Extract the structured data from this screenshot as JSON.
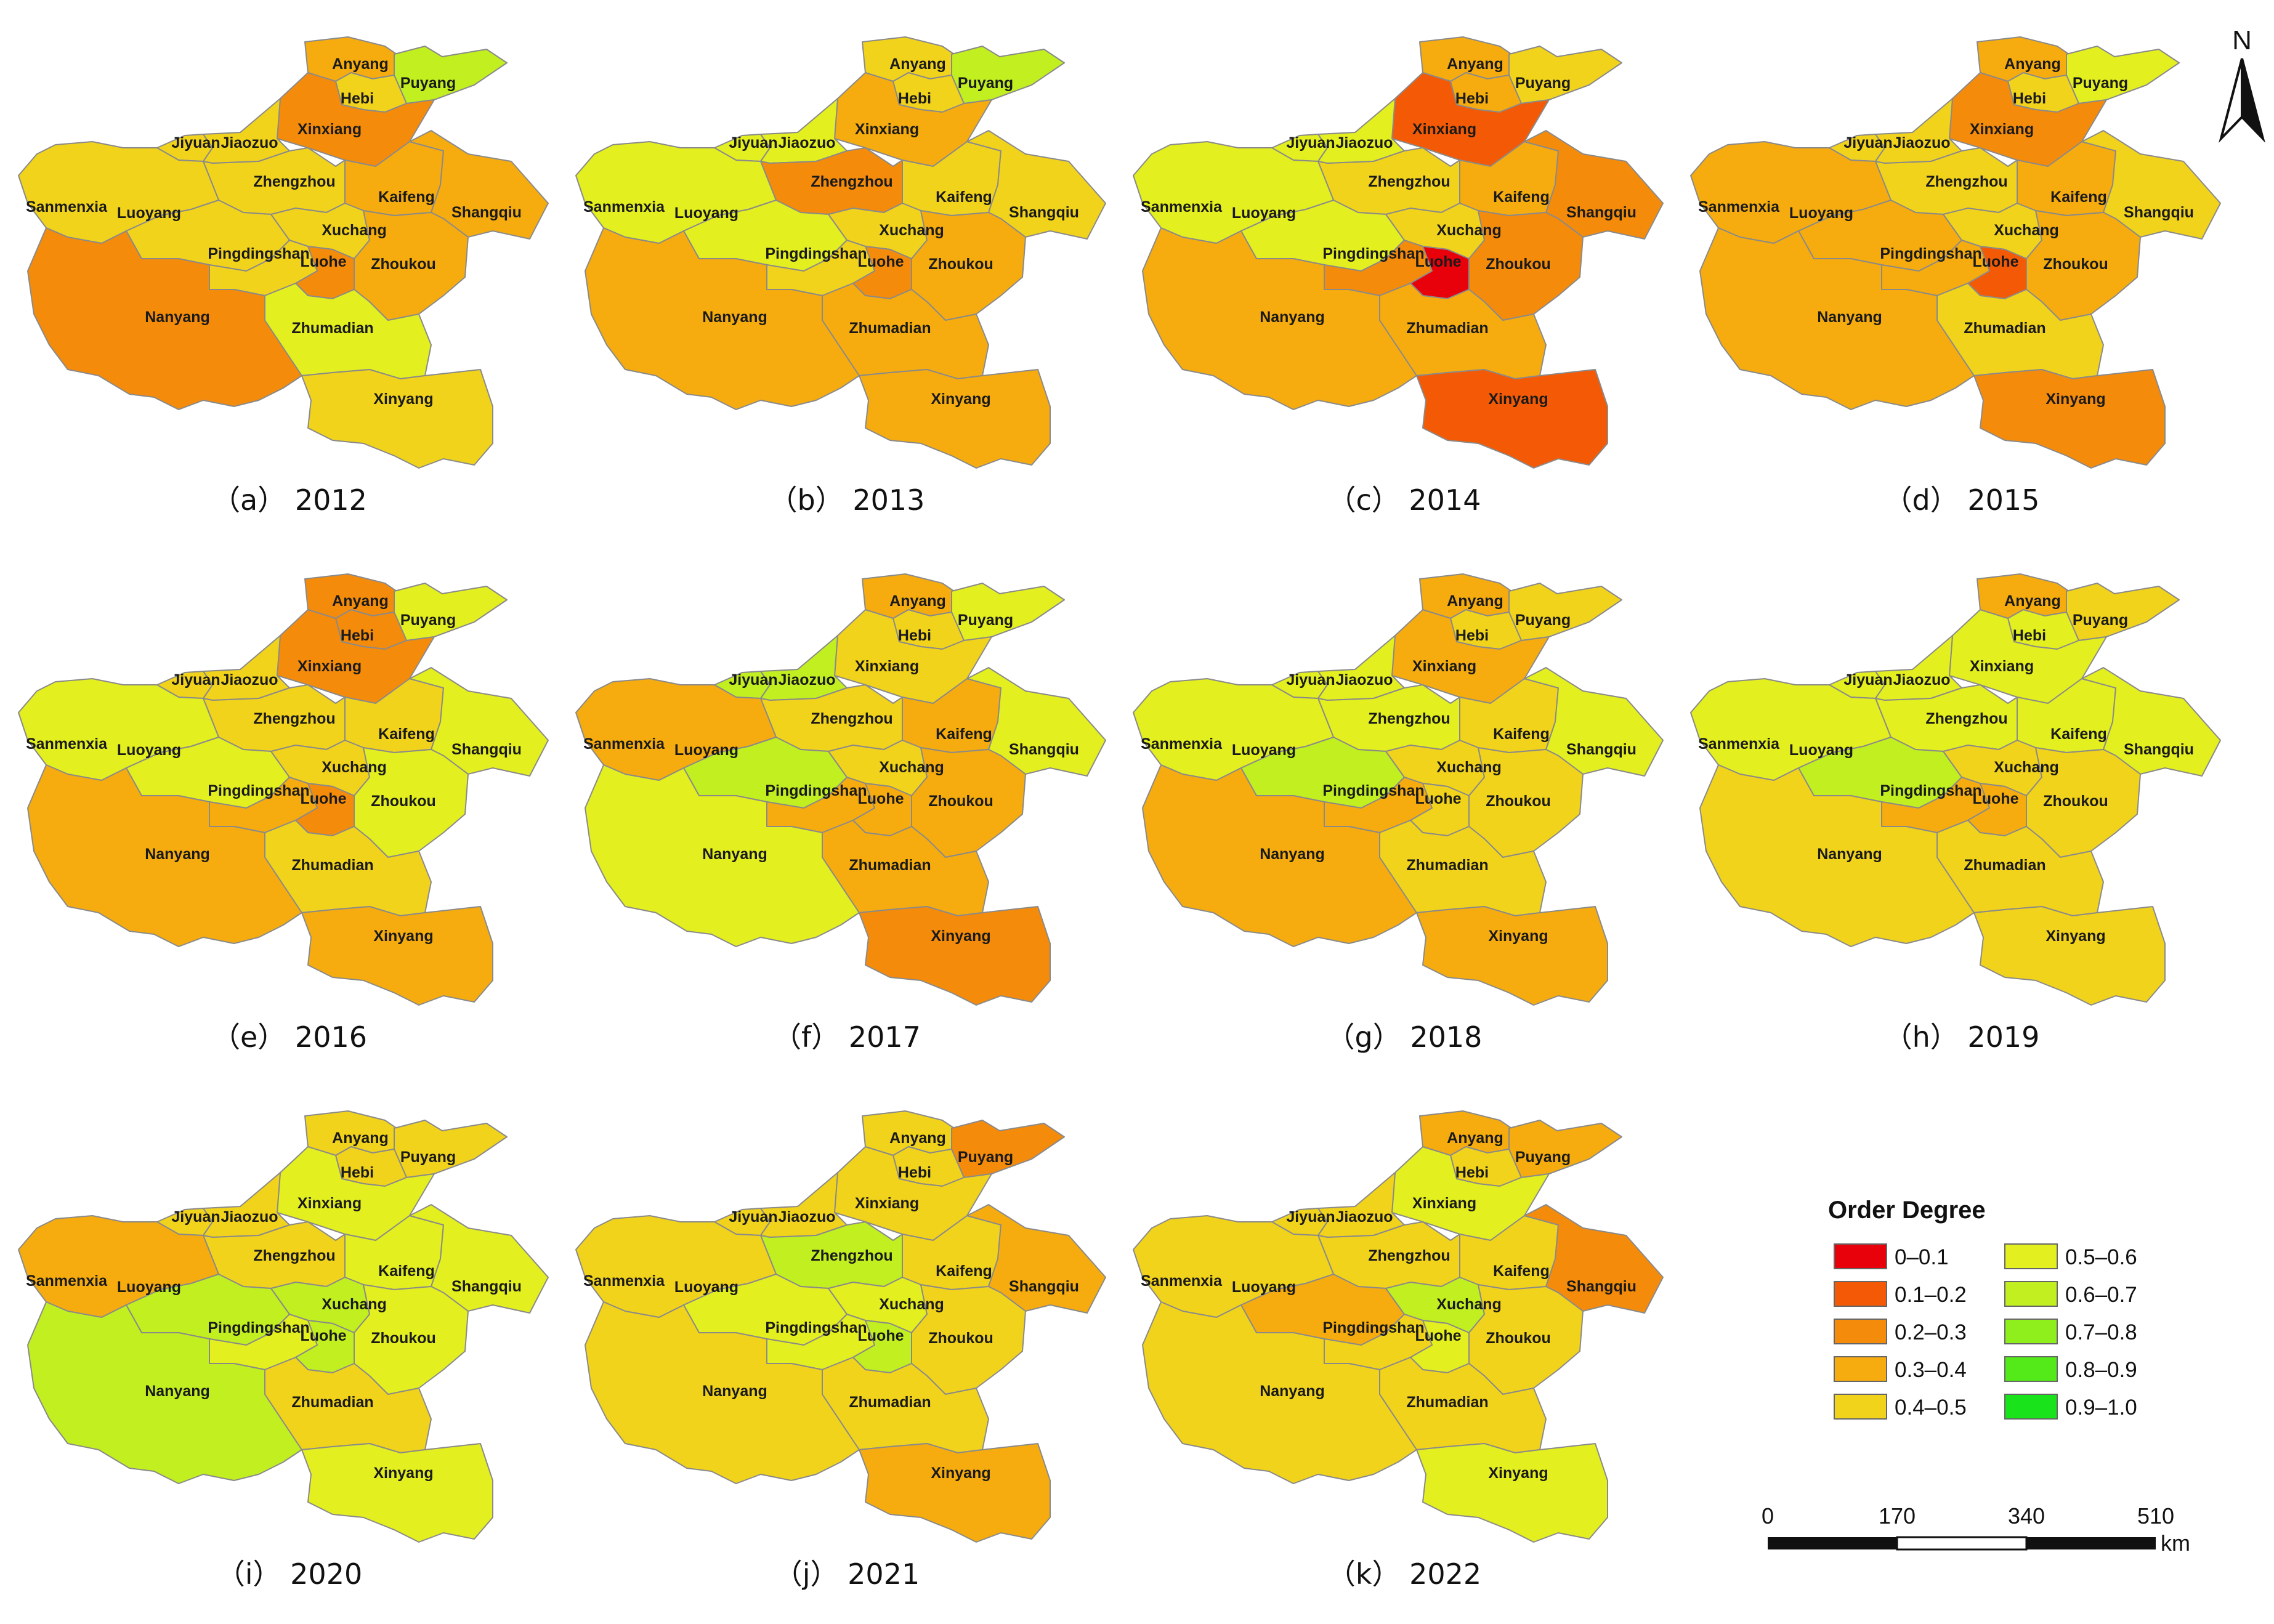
{
  "cities": [
    "Anyang",
    "Puyang",
    "Hebi",
    "Xinxiang",
    "Jiyuan",
    "Jiaozuo",
    "Zhengzhou",
    "Kaifeng",
    "Shangqiu",
    "Sanmenxia",
    "Luoyang",
    "Xuchang",
    "Pingdingshan",
    "Luohe",
    "Zhoukou",
    "Nanyang",
    "Zhumadian",
    "Xinyang"
  ],
  "legend": {
    "title": "Order Degree",
    "classes": [
      {
        "label": "0–0.1",
        "color": "#e8000b"
      },
      {
        "label": "0.1–0.2",
        "color": "#f45a05"
      },
      {
        "label": "0.2–0.3",
        "color": "#f58b0b"
      },
      {
        "label": "0.3–0.4",
        "color": "#f6ac0e"
      },
      {
        "label": "0.4–0.5",
        "color": "#f2d31b"
      },
      {
        "label": "0.5–0.6",
        "color": "#e3ef1e"
      },
      {
        "label": "0.6–0.7",
        "color": "#c1ef1f"
      },
      {
        "label": "0.7–0.8",
        "color": "#8fef1c"
      },
      {
        "label": "0.8–0.9",
        "color": "#54ea19"
      },
      {
        "label": "0.9–1.0",
        "color": "#19e31b"
      }
    ]
  },
  "scale_bar": {
    "ticks": [
      "0",
      "170",
      "340",
      "510"
    ],
    "unit": "km"
  },
  "north": "N",
  "maps": [
    {
      "caption": "（a） 2012",
      "classes": {
        "Anyang": 3,
        "Puyang": 6,
        "Hebi": 4,
        "Xinxiang": 2,
        "Jiyuan": 4,
        "Jiaozuo": 4,
        "Zhengzhou": 4,
        "Kaifeng": 3,
        "Shangqiu": 3,
        "Sanmenxia": 4,
        "Luoyang": 4,
        "Xuchang": 4,
        "Pingdingshan": 4,
        "Luohe": 2,
        "Zhoukou": 3,
        "Nanyang": 2,
        "Zhumadian": 5,
        "Xinyang": 4
      }
    },
    {
      "caption": "（b） 2013",
      "classes": {
        "Anyang": 4,
        "Puyang": 6,
        "Hebi": 4,
        "Xinxiang": 3,
        "Jiyuan": 5,
        "Jiaozuo": 5,
        "Zhengzhou": 2,
        "Kaifeng": 4,
        "Shangqiu": 4,
        "Sanmenxia": 5,
        "Luoyang": 5,
        "Xuchang": 4,
        "Pingdingshan": 4,
        "Luohe": 2,
        "Zhoukou": 3,
        "Nanyang": 3,
        "Zhumadian": 3,
        "Xinyang": 3
      }
    },
    {
      "caption": "（c） 2014",
      "classes": {
        "Anyang": 3,
        "Puyang": 4,
        "Hebi": 3,
        "Xinxiang": 1,
        "Jiyuan": 5,
        "Jiaozuo": 5,
        "Zhengzhou": 4,
        "Kaifeng": 3,
        "Shangqiu": 2,
        "Sanmenxia": 5,
        "Luoyang": 5,
        "Xuchang": 4,
        "Pingdingshan": 2,
        "Luohe": 0,
        "Zhoukou": 2,
        "Nanyang": 3,
        "Zhumadian": 3,
        "Xinyang": 1
      }
    },
    {
      "caption": "（d） 2015",
      "classes": {
        "Anyang": 3,
        "Puyang": 5,
        "Hebi": 4,
        "Xinxiang": 2,
        "Jiyuan": 4,
        "Jiaozuo": 4,
        "Zhengzhou": 4,
        "Kaifeng": 3,
        "Shangqiu": 4,
        "Sanmenxia": 3,
        "Luoyang": 3,
        "Xuchang": 4,
        "Pingdingshan": 3,
        "Luohe": 1,
        "Zhoukou": 3,
        "Nanyang": 3,
        "Zhumadian": 4,
        "Xinyang": 2
      }
    },
    {
      "caption": "（e） 2016",
      "classes": {
        "Anyang": 2,
        "Puyang": 5,
        "Hebi": 2,
        "Xinxiang": 2,
        "Jiyuan": 4,
        "Jiaozuo": 4,
        "Zhengzhou": 4,
        "Kaifeng": 4,
        "Shangqiu": 5,
        "Sanmenxia": 5,
        "Luoyang": 5,
        "Xuchang": 4,
        "Pingdingshan": 3,
        "Luohe": 2,
        "Zhoukou": 5,
        "Nanyang": 3,
        "Zhumadian": 4,
        "Xinyang": 3
      }
    },
    {
      "caption": "（f） 2017",
      "classes": {
        "Anyang": 3,
        "Puyang": 5,
        "Hebi": 4,
        "Xinxiang": 4,
        "Jiyuan": 6,
        "Jiaozuo": 6,
        "Zhengzhou": 4,
        "Kaifeng": 3,
        "Shangqiu": 5,
        "Sanmenxia": 3,
        "Luoyang": 6,
        "Xuchang": 4,
        "Pingdingshan": 3,
        "Luohe": 3,
        "Zhoukou": 3,
        "Nanyang": 5,
        "Zhumadian": 3,
        "Xinyang": 2
      }
    },
    {
      "caption": "（g） 2018",
      "classes": {
        "Anyang": 3,
        "Puyang": 4,
        "Hebi": 4,
        "Xinxiang": 3,
        "Jiyuan": 5,
        "Jiaozuo": 5,
        "Zhengzhou": 5,
        "Kaifeng": 4,
        "Shangqiu": 5,
        "Sanmenxia": 5,
        "Luoyang": 6,
        "Xuchang": 4,
        "Pingdingshan": 3,
        "Luohe": 4,
        "Zhoukou": 4,
        "Nanyang": 3,
        "Zhumadian": 4,
        "Xinyang": 3
      }
    },
    {
      "caption": "（h） 2019",
      "classes": {
        "Anyang": 3,
        "Puyang": 4,
        "Hebi": 5,
        "Xinxiang": 5,
        "Jiyuan": 5,
        "Jiaozuo": 5,
        "Zhengzhou": 5,
        "Kaifeng": 5,
        "Shangqiu": 5,
        "Sanmenxia": 5,
        "Luoyang": 6,
        "Xuchang": 4,
        "Pingdingshan": 3,
        "Luohe": 3,
        "Zhoukou": 4,
        "Nanyang": 4,
        "Zhumadian": 4,
        "Xinyang": 4
      }
    },
    {
      "caption": "（i） 2020",
      "classes": {
        "Anyang": 4,
        "Puyang": 4,
        "Hebi": 4,
        "Xinxiang": 5,
        "Jiyuan": 4,
        "Jiaozuo": 4,
        "Zhengzhou": 4,
        "Kaifeng": 5,
        "Shangqiu": 5,
        "Sanmenxia": 3,
        "Luoyang": 6,
        "Xuchang": 6,
        "Pingdingshan": 5,
        "Luohe": 6,
        "Zhoukou": 5,
        "Nanyang": 6,
        "Zhumadian": 4,
        "Xinyang": 5
      }
    },
    {
      "caption": "（j） 2021",
      "classes": {
        "Anyang": 4,
        "Puyang": 2,
        "Hebi": 4,
        "Xinxiang": 4,
        "Jiyuan": 4,
        "Jiaozuo": 4,
        "Zhengzhou": 6,
        "Kaifeng": 4,
        "Shangqiu": 3,
        "Sanmenxia": 4,
        "Luoyang": 5,
        "Xuchang": 5,
        "Pingdingshan": 5,
        "Luohe": 6,
        "Zhoukou": 4,
        "Nanyang": 4,
        "Zhumadian": 4,
        "Xinyang": 3
      }
    },
    {
      "caption": "（k） 2022",
      "classes": {
        "Anyang": 3,
        "Puyang": 3,
        "Hebi": 4,
        "Xinxiang": 5,
        "Jiyuan": 4,
        "Jiaozuo": 4,
        "Zhengzhou": 4,
        "Kaifeng": 4,
        "Shangqiu": 2,
        "Sanmenxia": 4,
        "Luoyang": 3,
        "Xuchang": 6,
        "Pingdingshan": 4,
        "Luohe": 5,
        "Zhoukou": 4,
        "Nanyang": 4,
        "Zhumadian": 4,
        "Xinyang": 5
      }
    }
  ]
}
